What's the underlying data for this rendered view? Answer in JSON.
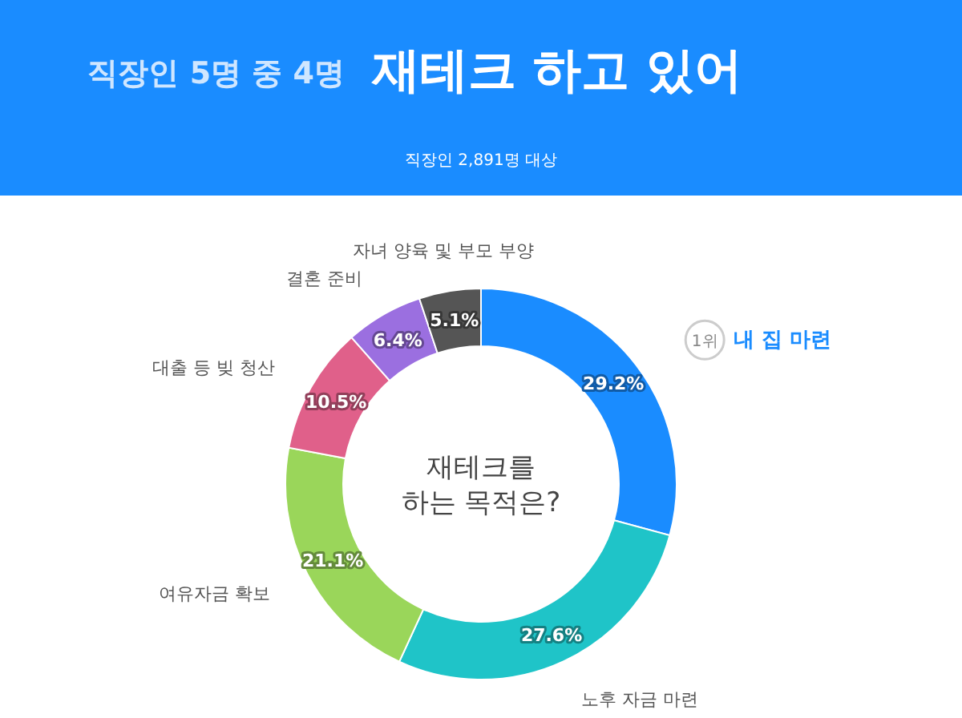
{
  "chart_data": {
    "type": "donut",
    "title": "직장인 5명 중 4명",
    "subtitle": "재테크 하고 있어",
    "categories": [
      "내 집 마련",
      "노후 자금 마련",
      "여유자금 확보",
      "대출 등 빚 청산",
      "결혼 준비",
      "자녀 양육 및 부모 부양"
    ],
    "values": [
      29.2,
      27.6,
      21.1,
      10.5,
      6.4,
      5.1
    ],
    "colors": [
      "#1a8cff",
      "#1fc4c8",
      "#9ad65a",
      "#e0608a",
      "#9b6fe0",
      "#555555"
    ],
    "value_labels": [
      "29.2%",
      "27.6%",
      "21.1%",
      "10.5%",
      "6.4%",
      "5.1%"
    ],
    "annotations": [
      "직장인 2,891명 대상",
      "재테크를\n하는 목적은?",
      "1위"
    ],
    "legend": false
  }
}
